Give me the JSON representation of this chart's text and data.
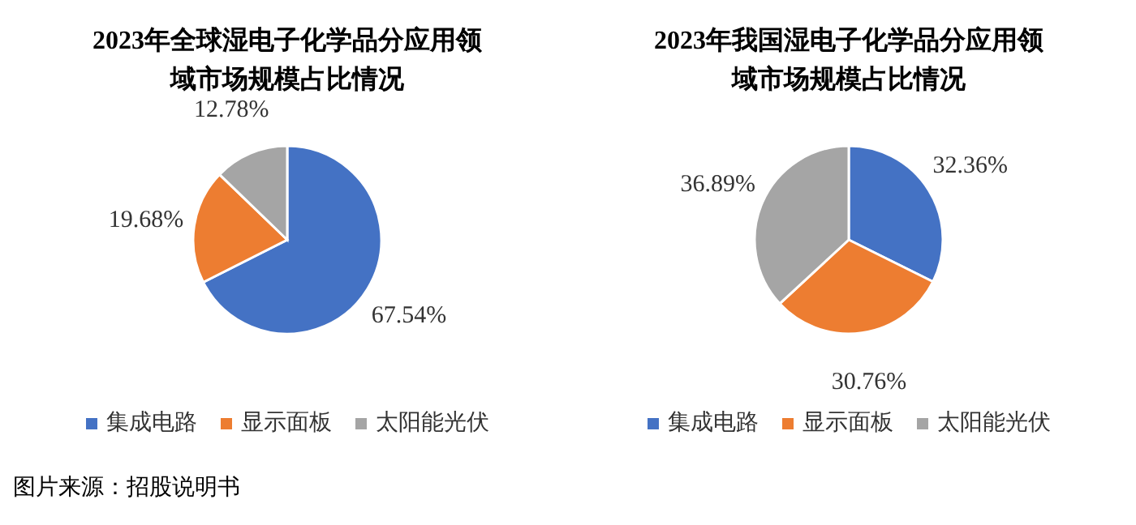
{
  "chart_data": [
    {
      "type": "pie",
      "title": "2023年全球湿电子化学品分应用领域市场规模占比情况",
      "categories": [
        "集成电路",
        "显示面板",
        "太阳能光伏"
      ],
      "values": [
        67.54,
        19.68,
        12.78
      ],
      "colors": [
        "#4472c4",
        "#ed7d31",
        "#a5a5a5"
      ],
      "value_labels": [
        "67.54%",
        "19.68%",
        "12.78%"
      ],
      "legend": "bottom"
    },
    {
      "type": "pie",
      "title": "2023年我国湿电子化学品分应用领域市场规模占比情况",
      "categories": [
        "集成电路",
        "显示面板",
        "太阳能光伏"
      ],
      "values": [
        32.36,
        30.76,
        36.89
      ],
      "colors": [
        "#4472c4",
        "#ed7d31",
        "#a5a5a5"
      ],
      "value_labels": [
        "32.36%",
        "30.76%",
        "36.89%"
      ],
      "legend": "bottom",
      "annotations": [
        "图片来源：招股说明书"
      ]
    }
  ]
}
